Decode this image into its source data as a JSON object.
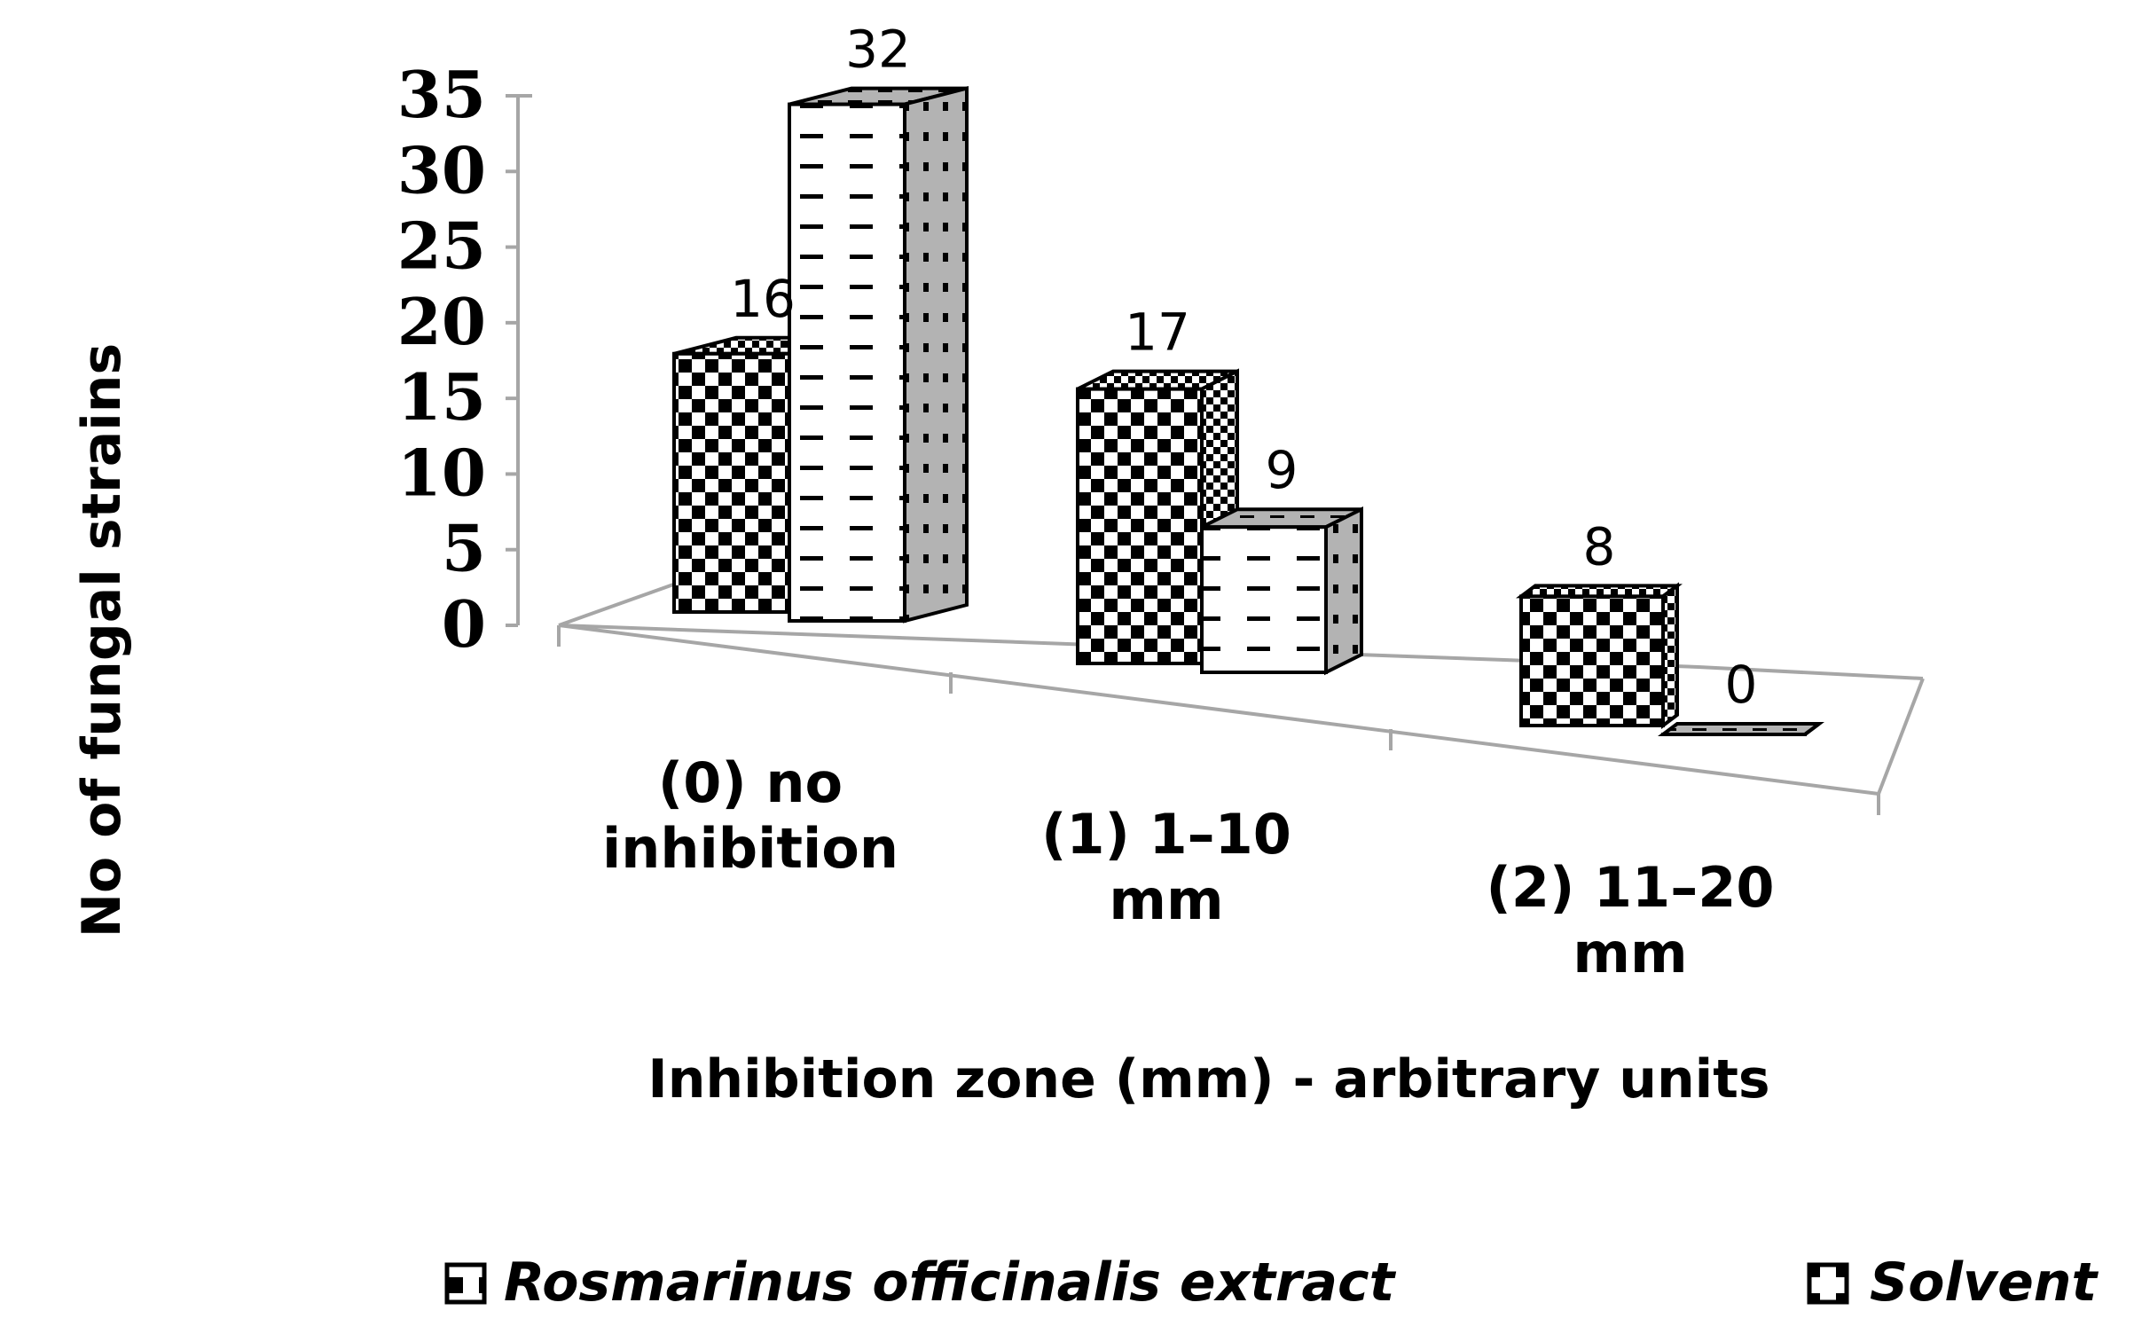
{
  "chart_data": {
    "type": "bar",
    "categories": [
      [
        "(0) no",
        "inhibition"
      ],
      [
        "(1) 1–10",
        "mm"
      ],
      [
        "(2) 11–20",
        "mm"
      ]
    ],
    "series": [
      {
        "name": "Rosmarinus officinalis extract",
        "values": [
          16,
          17,
          8
        ],
        "pattern": "checker"
      },
      {
        "name": "Solvent",
        "values": [
          32,
          9,
          0
        ],
        "pattern": "dash"
      }
    ],
    "ylabel": "No of fungal strains",
    "xlabel": "Inhibition zone (mm) - arbitrary units",
    "ylim": [
      0,
      35
    ],
    "yticks": [
      0,
      5,
      10,
      15,
      20,
      25,
      30,
      35
    ],
    "legend_position": "bottom",
    "grid": false,
    "axis_color": "#a6a6a6"
  }
}
